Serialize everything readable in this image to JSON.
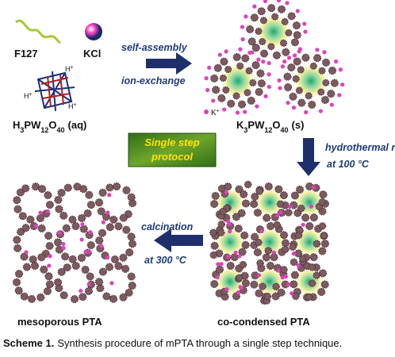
{
  "reactants": {
    "polymer": "F127",
    "salt": "KCl",
    "acid": [
      "H",
      "3",
      "PW",
      "12",
      "O",
      "40",
      "(aq)"
    ],
    "proton_labels": [
      [
        "H",
        "+"
      ],
      [
        "H",
        "+"
      ],
      [
        "H",
        "+"
      ]
    ]
  },
  "step1": {
    "line1": "self-assembly",
    "line2": "ion-exchange"
  },
  "potassium_label": [
    "K",
    "+"
  ],
  "intermediate": [
    "K",
    "3",
    "PW",
    "12",
    "O",
    "40",
    "(s)"
  ],
  "protocol": [
    "Single step",
    "protocol"
  ],
  "step2": [
    "hydrothermal rxn.",
    "at 100 °C"
  ],
  "step3": [
    "calcination",
    "at 300 °C"
  ],
  "products": {
    "co_condensed": "co-condensed PTA",
    "mesoporous": "mesoporous PTA"
  },
  "caption": {
    "label": "Scheme 1.",
    "text": "Synthesis procedure of mPTA through a single step technique."
  }
}
